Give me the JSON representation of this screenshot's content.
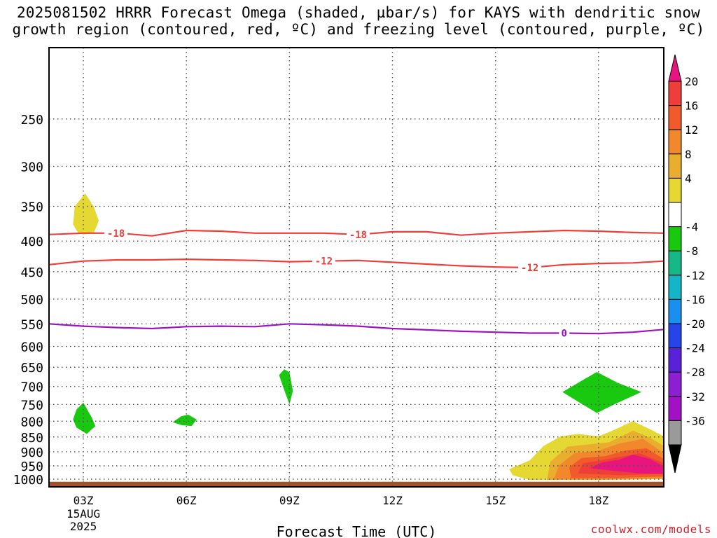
{
  "title_line1": "2025081502 HRRR Forecast Omega (shaded, µbar/s) for KAYS with dendritic snow",
  "title_line2": "growth region (contoured, red, ºC) and freezing level (contoured, purple, ºC)",
  "credit": "coolwx.com/models",
  "chart_data": {
    "type": "time-height cross section",
    "xlabel": "Forecast Time (UTC)",
    "x_ticks": [
      {
        "hour": 3,
        "label": "03Z",
        "sub": [
          "15AUG",
          "2025"
        ]
      },
      {
        "hour": 6,
        "label": "06Z"
      },
      {
        "hour": 9,
        "label": "09Z"
      },
      {
        "hour": 12,
        "label": "12Z"
      },
      {
        "hour": 15,
        "label": "15Z"
      },
      {
        "hour": 18,
        "label": "18Z"
      }
    ],
    "xlim": [
      2,
      19.9
    ],
    "ylabel": "",
    "y_scale": "log pressure (hPa), inverted",
    "ylim": [
      1030,
      190
    ],
    "y_ticks": [
      250,
      300,
      350,
      400,
      450,
      500,
      550,
      600,
      650,
      700,
      750,
      800,
      850,
      900,
      950,
      1000
    ],
    "grid": true,
    "terrain_top_hPa": 1010,
    "colorbar": {
      "labels": [
        "20",
        "16",
        "12",
        "8",
        "4",
        "-4",
        "-8",
        "-12",
        "-16",
        "-20",
        "-24",
        "-28",
        "-32",
        "-36"
      ],
      "colors_top_to_bottom": [
        "#e8157e",
        "#ee3e3a",
        "#f15a2a",
        "#f2882c",
        "#e9ad2f",
        "#e5d832",
        "#ffffff",
        "#19c90f",
        "#16b887",
        "#14b5c7",
        "#1b8ff0",
        "#2545e8",
        "#5a22d8",
        "#8c1fd1",
        "#a211c4",
        "#9a9a9a",
        "#000000"
      ]
    },
    "omega_shading": [
      {
        "level": 4,
        "color": "#e5d832",
        "polygon": [
          [
            3.0,
            390
          ],
          [
            3.3,
            388
          ],
          [
            3.45,
            370
          ],
          [
            3.3,
            350
          ],
          [
            3.05,
            333
          ],
          [
            2.75,
            350
          ],
          [
            2.7,
            375
          ],
          [
            2.85,
            388
          ]
        ]
      },
      {
        "level": -4,
        "color": "#19c90f",
        "polygon": [
          [
            3.0,
            745
          ],
          [
            3.25,
            790
          ],
          [
            3.35,
            815
          ],
          [
            3.1,
            840
          ],
          [
            2.8,
            820
          ],
          [
            2.7,
            795
          ],
          [
            2.8,
            765
          ]
        ]
      },
      {
        "level": -4,
        "color": "#19c90f",
        "polygon": [
          [
            5.6,
            803
          ],
          [
            5.85,
            785
          ],
          [
            6.05,
            780
          ],
          [
            6.3,
            795
          ],
          [
            6.15,
            815
          ],
          [
            5.85,
            812
          ]
        ]
      },
      {
        "level": -4,
        "color": "#19c90f",
        "polygon": [
          [
            8.7,
            670
          ],
          [
            8.85,
            655
          ],
          [
            9.0,
            663
          ],
          [
            9.1,
            712
          ],
          [
            9.0,
            750
          ],
          [
            8.85,
            710
          ]
        ]
      },
      {
        "level": -4,
        "color": "#19c90f",
        "polygon": [
          [
            16.95,
            715
          ],
          [
            17.5,
            685
          ],
          [
            17.95,
            662
          ],
          [
            18.55,
            690
          ],
          [
            19.25,
            715
          ],
          [
            18.5,
            748
          ],
          [
            17.95,
            775
          ],
          [
            17.45,
            745
          ]
        ]
      },
      {
        "level": 4,
        "color": "#e5d832",
        "polygon": [
          [
            15.4,
            962
          ],
          [
            16.0,
            930
          ],
          [
            16.4,
            880
          ],
          [
            16.9,
            848
          ],
          [
            17.4,
            840
          ],
          [
            18.0,
            848
          ],
          [
            18.4,
            830
          ],
          [
            19.0,
            800
          ],
          [
            19.5,
            825
          ],
          [
            19.9,
            848
          ],
          [
            19.9,
            1000
          ],
          [
            19.0,
            1000
          ],
          [
            17.5,
            1000
          ],
          [
            16.0,
            1003
          ],
          [
            15.5,
            985
          ]
        ]
      },
      {
        "level": 8,
        "color": "#e9ad2f",
        "polygon": [
          [
            16.5,
            1003
          ],
          [
            16.6,
            935
          ],
          [
            17.1,
            882
          ],
          [
            17.7,
            875
          ],
          [
            18.3,
            868
          ],
          [
            19.0,
            830
          ],
          [
            19.5,
            852
          ],
          [
            19.9,
            880
          ],
          [
            19.9,
            1000
          ],
          [
            18.0,
            1003
          ]
        ]
      },
      {
        "level": 12,
        "color": "#f2882c",
        "polygon": [
          [
            16.7,
            1000
          ],
          [
            16.85,
            948
          ],
          [
            17.3,
            905
          ],
          [
            18.0,
            896
          ],
          [
            18.6,
            872
          ],
          [
            19.3,
            856
          ],
          [
            19.9,
            905
          ],
          [
            19.9,
            995
          ],
          [
            18.5,
            1000
          ]
        ]
      },
      {
        "level": 16,
        "color": "#f15a2a",
        "polygon": [
          [
            17.2,
            996
          ],
          [
            17.15,
            955
          ],
          [
            17.5,
            922
          ],
          [
            18.2,
            915
          ],
          [
            18.8,
            895
          ],
          [
            19.4,
            888
          ],
          [
            19.9,
            925
          ],
          [
            19.9,
            990
          ],
          [
            18.5,
            995
          ]
        ]
      },
      {
        "level": 20,
        "color": "#ee3e3a",
        "polygon": [
          [
            17.4,
            978
          ],
          [
            17.55,
            940
          ],
          [
            18.0,
            932
          ],
          [
            18.6,
            918
          ],
          [
            19.2,
            905
          ],
          [
            19.9,
            940
          ],
          [
            19.9,
            980
          ],
          [
            18.6,
            985
          ]
        ]
      },
      {
        "level": 24,
        "color": "#e8157e",
        "polygon": [
          [
            17.75,
            958
          ],
          [
            18.1,
            938
          ],
          [
            18.6,
            928
          ],
          [
            19.0,
            910
          ],
          [
            19.5,
            925
          ],
          [
            19.9,
            952
          ],
          [
            19.9,
            980
          ],
          [
            19.2,
            978
          ],
          [
            18.4,
            968
          ]
        ]
      }
    ],
    "contours": [
      {
        "name": "-18",
        "color": "#ee3e3a",
        "label_pos": [
          [
            3.95,
            "-18"
          ],
          [
            11.0,
            "-18"
          ]
        ],
        "x": [
          2,
          3,
          4,
          5,
          6,
          7,
          8,
          9,
          10,
          11,
          12,
          13,
          14,
          15,
          16,
          17,
          18,
          19,
          19.9
        ],
        "y": [
          390,
          388,
          388,
          392,
          384,
          385,
          388,
          388,
          388,
          390,
          386,
          386,
          391,
          388,
          386,
          384,
          385,
          387,
          388
        ]
      },
      {
        "name": "-12",
        "color": "#ee3e3a",
        "label_pos": [
          [
            10.0,
            "-12"
          ],
          [
            16.0,
            "-12"
          ]
        ],
        "x": [
          2,
          3,
          4,
          5,
          6,
          7,
          8,
          9,
          10,
          11,
          12,
          13,
          14,
          15,
          16,
          17,
          18,
          19,
          19.9
        ],
        "y": [
          438,
          432,
          430,
          430,
          429,
          430,
          431,
          433,
          432,
          431,
          434,
          437,
          440,
          442,
          443,
          438,
          436,
          435,
          432
        ]
      },
      {
        "name": "0",
        "color": "#9b13c3",
        "label_pos": [
          [
            17.0,
            "0"
          ]
        ],
        "x": [
          2,
          3,
          4,
          5,
          6,
          7,
          8,
          9,
          10,
          11,
          12,
          13,
          14,
          15,
          16,
          17,
          18,
          19,
          19.9
        ],
        "y": [
          550,
          555,
          558,
          560,
          556,
          555,
          556,
          550,
          552,
          555,
          560,
          563,
          566,
          568,
          570,
          570,
          571,
          568,
          562
        ]
      }
    ]
  }
}
